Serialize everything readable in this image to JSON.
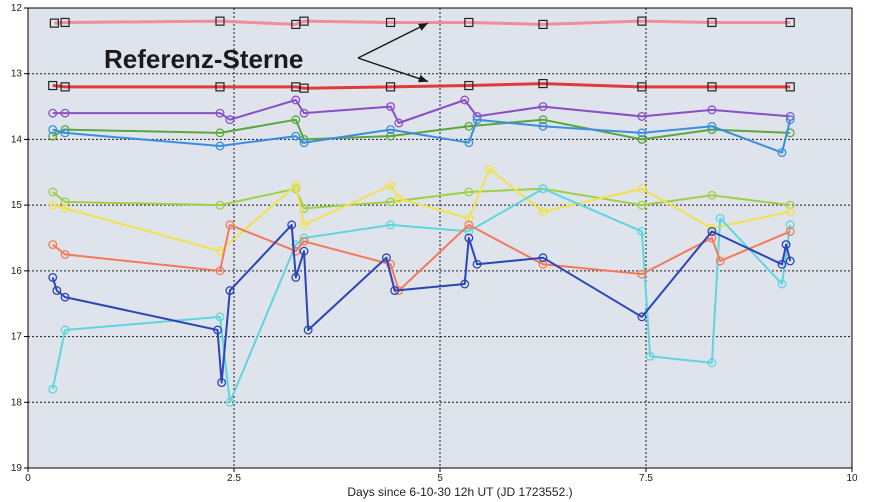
{
  "chart_data": {
    "type": "scatter",
    "xlabel": "Days since    6-10-30 12h UT (JD 1723552.)",
    "ylabel": "",
    "xlim": [
      0,
      10
    ],
    "ylim": [
      19,
      12
    ],
    "y_axis_inverted": true,
    "grid": true,
    "grid_style": "dashed",
    "plot_background": "#dfe4ec",
    "xticks": [
      "0",
      "2.5",
      "5",
      "7.5",
      "10"
    ],
    "yticks": [
      "12",
      "13",
      "14",
      "15",
      "16",
      "17",
      "18",
      "19"
    ],
    "annotation": {
      "text": "Referenz-Sterne",
      "arrow_targets": [
        [
          5.0,
          12.2
        ],
        [
          5.0,
          13.15
        ]
      ]
    },
    "series": [
      {
        "color": "#f28c9c",
        "marker": "square",
        "x": [
          0.32,
          0.45,
          2.33,
          3.25,
          3.35,
          4.4,
          5.35,
          6.25,
          7.45,
          8.3,
          9.25
        ],
        "y": [
          12.23,
          12.22,
          12.2,
          12.25,
          12.2,
          12.22,
          12.22,
          12.25,
          12.2,
          12.22,
          12.22
        ]
      },
      {
        "color": "#e23a3a",
        "marker": "square",
        "x": [
          0.3,
          0.45,
          2.33,
          3.25,
          3.35,
          4.4,
          5.35,
          6.25,
          7.45,
          8.3,
          9.25
        ],
        "y": [
          13.18,
          13.2,
          13.2,
          13.2,
          13.22,
          13.2,
          13.18,
          13.15,
          13.2,
          13.2,
          13.2
        ]
      },
      {
        "color": "#8a4fc7",
        "marker": "circle",
        "x": [
          0.3,
          0.45,
          2.33,
          2.45,
          3.25,
          3.35,
          4.4,
          4.5,
          5.3,
          5.45,
          6.25,
          7.45,
          8.3,
          9.25
        ],
        "y": [
          13.6,
          13.6,
          13.6,
          13.7,
          13.4,
          13.6,
          13.5,
          13.75,
          13.4,
          13.65,
          13.5,
          13.65,
          13.55,
          13.65
        ]
      },
      {
        "color": "#5aa63c",
        "marker": "circle",
        "x": [
          0.3,
          0.45,
          2.33,
          3.25,
          3.35,
          4.4,
          5.35,
          6.25,
          7.45,
          8.3,
          9.25
        ],
        "y": [
          13.95,
          13.85,
          13.9,
          13.7,
          14.0,
          13.95,
          13.8,
          13.7,
          14.0,
          13.85,
          13.9
        ]
      },
      {
        "color": "#3a8edc",
        "marker": "circle",
        "x": [
          0.3,
          0.45,
          2.33,
          3.25,
          3.35,
          4.4,
          5.35,
          5.45,
          6.25,
          7.45,
          8.3,
          9.15,
          9.25
        ],
        "y": [
          13.85,
          13.9,
          14.1,
          13.95,
          14.05,
          13.85,
          14.05,
          13.7,
          13.8,
          13.9,
          13.8,
          14.2,
          13.7
        ]
      },
      {
        "color": "#9fcf47",
        "marker": "circle",
        "x": [
          0.3,
          0.45,
          2.33,
          3.25,
          3.35,
          4.4,
          5.35,
          6.25,
          7.45,
          8.3,
          9.25
        ],
        "y": [
          14.8,
          14.95,
          15.0,
          14.75,
          15.05,
          14.95,
          14.8,
          14.75,
          15.0,
          14.85,
          15.0
        ]
      },
      {
        "color": "#f2e24a",
        "marker": "circle",
        "x": [
          0.3,
          0.45,
          2.33,
          3.25,
          3.35,
          4.4,
          4.5,
          5.35,
          5.6,
          6.25,
          7.45,
          8.3,
          9.25
        ],
        "y": [
          15.0,
          15.05,
          15.7,
          14.7,
          15.3,
          14.7,
          14.9,
          15.2,
          14.45,
          15.1,
          14.75,
          15.35,
          15.1
        ]
      },
      {
        "color": "#5fd6dc",
        "marker": "circle",
        "x": [
          0.3,
          0.45,
          2.33,
          2.45,
          3.25,
          3.35,
          4.4,
          5.35,
          6.25,
          7.45,
          7.55,
          8.3,
          8.4,
          9.15,
          9.25
        ],
        "y": [
          17.8,
          16.9,
          16.7,
          18.0,
          15.6,
          15.5,
          15.3,
          15.4,
          14.75,
          15.4,
          17.3,
          17.4,
          15.2,
          16.2,
          15.3
        ]
      },
      {
        "color": "#f47a57",
        "marker": "circle",
        "x": [
          0.3,
          0.45,
          2.33,
          2.45,
          3.25,
          3.35,
          4.4,
          4.5,
          5.35,
          6.25,
          7.45,
          8.3,
          8.4,
          9.25
        ],
        "y": [
          15.6,
          15.75,
          16.0,
          15.3,
          15.7,
          15.55,
          15.9,
          16.3,
          15.3,
          15.9,
          16.05,
          15.5,
          15.85,
          15.4
        ]
      },
      {
        "color": "#2b45b8",
        "marker": "circle",
        "x": [
          0.3,
          0.35,
          0.45,
          2.3,
          2.35,
          2.45,
          3.2,
          3.25,
          3.35,
          3.4,
          4.35,
          4.45,
          5.3,
          5.35,
          5.45,
          6.25,
          7.45,
          8.3,
          9.15,
          9.2,
          9.25
        ],
        "y": [
          16.1,
          16.3,
          16.4,
          16.9,
          17.7,
          16.3,
          15.3,
          16.1,
          15.7,
          16.9,
          15.8,
          16.3,
          16.2,
          15.5,
          15.9,
          15.8,
          16.7,
          15.4,
          15.9,
          15.6,
          15.85
        ]
      }
    ]
  }
}
